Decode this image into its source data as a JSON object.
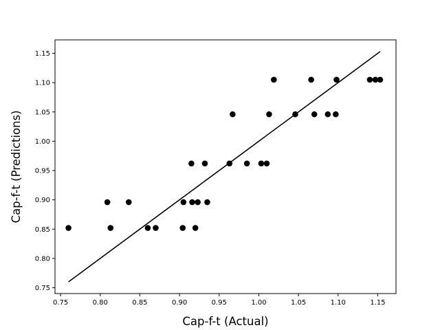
{
  "chart_data": {
    "type": "scatter",
    "xlabel": "Cap-f-t (Actual)",
    "ylabel": "Cap-f-t (Predictions)",
    "xlim": [
      0.743,
      1.173
    ],
    "ylim": [
      0.74,
      1.173
    ],
    "xticks": [
      "0.75",
      "0.80",
      "0.85",
      "0.90",
      "0.95",
      "1.00",
      "1.05",
      "1.10",
      "1.15"
    ],
    "yticks": [
      "0.75",
      "0.80",
      "0.85",
      "0.90",
      "0.95",
      "1.00",
      "1.05",
      "1.10",
      "1.15"
    ],
    "grid": false,
    "series": [
      {
        "name": "points",
        "color": "#000000",
        "points": [
          [
            0.76,
            0.852
          ],
          [
            0.813,
            0.852
          ],
          [
            0.86,
            0.852
          ],
          [
            0.87,
            0.852
          ],
          [
            0.904,
            0.852
          ],
          [
            0.92,
            0.852
          ],
          [
            0.809,
            0.896
          ],
          [
            0.836,
            0.896
          ],
          [
            0.905,
            0.896
          ],
          [
            0.916,
            0.896
          ],
          [
            0.923,
            0.896
          ],
          [
            0.935,
            0.896
          ],
          [
            0.915,
            0.962
          ],
          [
            0.932,
            0.962
          ],
          [
            0.963,
            0.962
          ],
          [
            0.985,
            0.962
          ],
          [
            1.003,
            0.962
          ],
          [
            1.01,
            0.962
          ],
          [
            0.967,
            1.046
          ],
          [
            1.013,
            1.046
          ],
          [
            1.046,
            1.046
          ],
          [
            1.07,
            1.046
          ],
          [
            1.087,
            1.046
          ],
          [
            1.097,
            1.046
          ],
          [
            1.019,
            1.105
          ],
          [
            1.066,
            1.105
          ],
          [
            1.098,
            1.105
          ],
          [
            1.14,
            1.105
          ],
          [
            1.147,
            1.105
          ],
          [
            1.153,
            1.105
          ]
        ]
      }
    ],
    "fit_line": {
      "name": "fit",
      "color": "#000000",
      "points": [
        [
          0.76,
          0.76
        ],
        [
          1.153,
          1.153
        ]
      ]
    }
  }
}
